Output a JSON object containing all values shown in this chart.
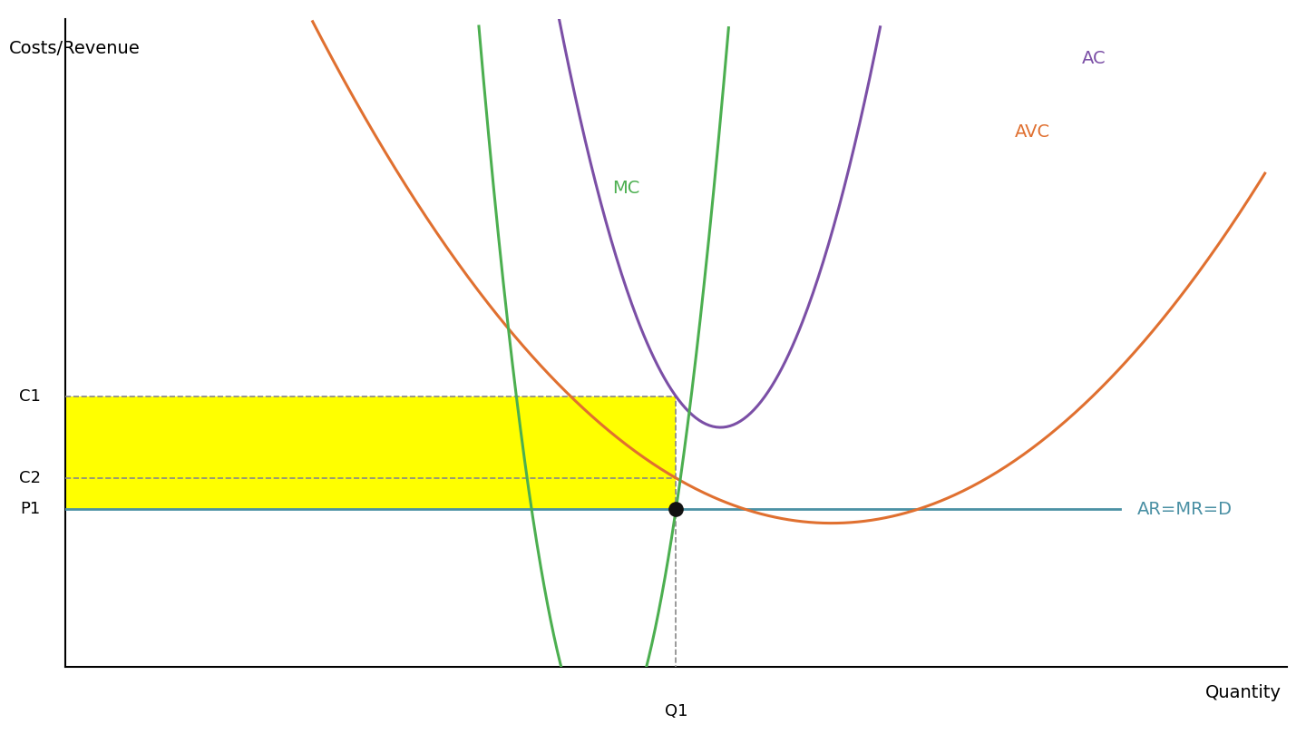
{
  "title": "",
  "xlabel": "Quantity",
  "ylabel": "Costs/Revenue",
  "background_color": "#ffffff",
  "ar_mr_d_color": "#4a90a4",
  "mc_color": "#4caf50",
  "ac_color": "#7b4fa6",
  "avc_color": "#e07030",
  "yellow_fill": "#ffff00",
  "dashed_color": "#888888",
  "dot_color": "#111111",
  "Q1": 5.5,
  "P1": 3.8,
  "C1": 5.8,
  "C2": 4.35,
  "x_min": 0,
  "x_max": 11,
  "y_min": 1.0,
  "y_max": 12.5,
  "ar_label": "AR=MR=D",
  "mc_label": "MC",
  "ac_label": "AC",
  "avc_label": "AVC",
  "c1_label": "C1",
  "c2_label": "C2",
  "p1_label": "P1",
  "q1_label": "Q1",
  "label_fontsize": 14,
  "axis_label_fontsize": 14,
  "tick_label_fontsize": 13
}
